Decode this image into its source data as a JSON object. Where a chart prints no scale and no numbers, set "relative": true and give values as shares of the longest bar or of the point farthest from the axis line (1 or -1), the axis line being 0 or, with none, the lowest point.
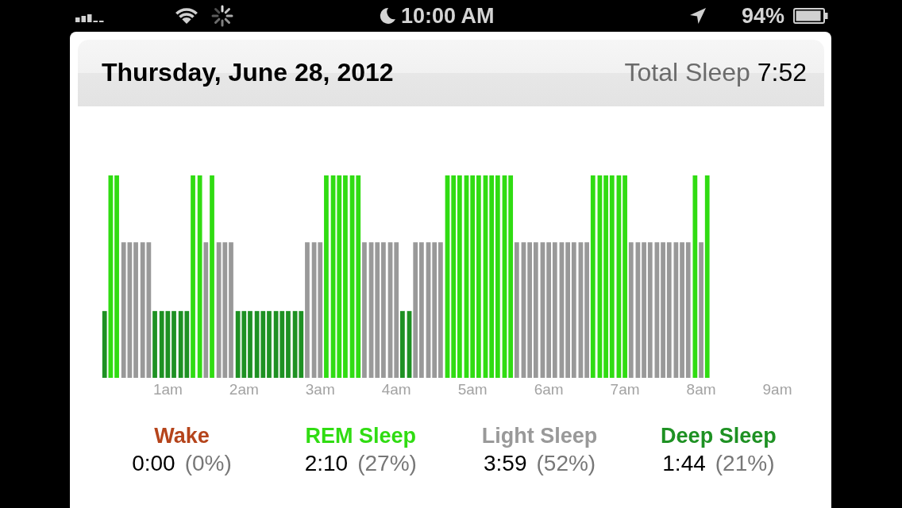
{
  "chart_data": {
    "type": "bar",
    "title": "Thursday, June 28, 2012",
    "relative": true,
    "legend": "bottom",
    "tick_labels": "x",
    "annotations": [
      "Total Sleep",
      "7:52",
      "0:00",
      "(0%)",
      "2:10",
      "(27%)",
      "3:59",
      "(52%)",
      "1:44",
      "(21%)",
      "10:00 AM",
      "94%"
    ],
    "xlim": [
      0.1,
      9
    ],
    "xticks": [
      {
        "value": 1,
        "label": "1am"
      },
      {
        "value": 2,
        "label": "2am"
      },
      {
        "value": 3,
        "label": "3am"
      },
      {
        "value": 4,
        "label": "4am"
      },
      {
        "value": 5,
        "label": "5am"
      },
      {
        "value": 6,
        "label": "6am"
      },
      {
        "value": 7,
        "label": "7am"
      },
      {
        "value": 8,
        "label": "8am"
      },
      {
        "value": 9,
        "label": "9am"
      }
    ],
    "x": [
      0.17,
      0.25,
      0.33,
      0.42,
      0.5,
      0.58,
      0.67,
      0.75,
      0.83,
      0.92,
      1,
      1.08,
      1.17,
      1.25,
      1.33,
      1.42,
      1.5,
      1.58,
      1.67,
      1.75,
      1.83,
      1.92,
      2,
      2.08,
      2.17,
      2.25,
      2.33,
      2.42,
      2.5,
      2.58,
      2.67,
      2.75,
      2.83,
      2.92,
      3,
      3.08,
      3.17,
      3.25,
      3.33,
      3.42,
      3.5,
      3.58,
      3.67,
      3.75,
      3.83,
      3.92,
      4,
      4.08,
      4.17,
      4.25,
      4.33,
      4.42,
      4.5,
      4.58,
      4.67,
      4.75,
      4.83,
      4.92,
      5,
      5.08,
      5.17,
      5.25,
      5.33,
      5.42,
      5.5,
      5.58,
      5.67,
      5.75,
      5.83,
      5.92,
      6,
      6.08,
      6.17,
      6.25,
      6.33,
      6.42,
      6.5,
      6.58,
      6.67,
      6.75,
      6.83,
      6.92,
      7,
      7.08,
      7.17,
      7.25,
      7.33,
      7.42,
      7.5,
      7.58,
      7.67,
      7.75,
      7.83,
      7.92,
      8,
      8.08
    ],
    "series": [
      {
        "name": "Wake",
        "color": "#b5441b",
        "values": [
          null,
          null,
          null,
          null,
          null,
          null,
          null,
          null,
          null,
          null,
          null,
          null,
          null,
          null,
          null,
          null,
          null,
          null,
          null,
          null,
          null,
          null,
          null,
          null,
          null,
          null,
          null,
          null,
          null,
          null,
          null,
          null,
          null,
          null,
          null,
          null,
          null,
          null,
          null,
          null,
          null,
          null,
          null,
          null,
          null,
          null,
          null,
          null,
          null,
          null,
          null,
          null,
          null,
          null,
          null,
          null,
          null,
          null,
          null,
          null,
          null,
          null,
          null,
          null,
          null,
          null,
          null,
          null,
          null,
          null,
          null,
          null,
          null,
          null,
          null,
          null,
          null,
          null,
          null,
          null,
          null,
          null,
          null,
          null,
          null,
          null,
          null,
          null,
          null,
          null,
          null,
          null,
          null,
          null,
          null,
          null
        ]
      },
      {
        "name": "REM Sleep",
        "color": "#30dc12",
        "values": [
          null,
          1,
          1,
          null,
          null,
          null,
          null,
          null,
          null,
          null,
          null,
          null,
          null,
          null,
          1,
          1,
          null,
          1,
          null,
          null,
          null,
          null,
          null,
          null,
          null,
          null,
          null,
          null,
          null,
          null,
          null,
          null,
          null,
          null,
          null,
          1,
          1,
          1,
          1,
          1,
          1,
          null,
          null,
          null,
          null,
          null,
          null,
          null,
          null,
          null,
          null,
          null,
          null,
          null,
          1,
          1,
          1,
          1,
          1,
          1,
          1,
          1,
          1,
          1,
          1,
          null,
          null,
          null,
          null,
          null,
          null,
          null,
          null,
          null,
          null,
          null,
          null,
          1,
          1,
          1,
          1,
          1,
          1,
          null,
          null,
          null,
          null,
          null,
          null,
          null,
          null,
          null,
          null,
          1,
          null,
          1
        ]
      },
      {
        "name": "Light Sleep",
        "color": "#999999",
        "values": [
          null,
          null,
          null,
          0.67,
          0.67,
          0.67,
          0.67,
          0.67,
          null,
          null,
          null,
          null,
          null,
          null,
          null,
          null,
          0.67,
          null,
          0.67,
          0.67,
          0.67,
          null,
          null,
          null,
          null,
          null,
          null,
          null,
          null,
          null,
          null,
          null,
          0.67,
          0.67,
          0.67,
          null,
          null,
          null,
          null,
          null,
          null,
          0.67,
          0.67,
          0.67,
          0.67,
          0.67,
          0.67,
          null,
          null,
          0.67,
          0.67,
          0.67,
          0.67,
          0.67,
          null,
          null,
          null,
          null,
          null,
          null,
          null,
          null,
          null,
          null,
          null,
          0.67,
          0.67,
          0.67,
          0.67,
          0.67,
          0.67,
          0.67,
          0.67,
          0.67,
          0.67,
          0.67,
          0.67,
          null,
          null,
          null,
          null,
          null,
          null,
          0.67,
          0.67,
          0.67,
          0.67,
          0.67,
          0.67,
          0.67,
          0.67,
          0.67,
          0.67,
          null,
          0.67,
          null
        ]
      },
      {
        "name": "Deep Sleep",
        "color": "#1e9123",
        "values": [
          0.33,
          null,
          null,
          null,
          null,
          null,
          null,
          null,
          0.33,
          0.33,
          0.33,
          0.33,
          0.33,
          0.33,
          null,
          null,
          null,
          null,
          null,
          null,
          null,
          0.33,
          0.33,
          0.33,
          0.33,
          0.33,
          0.33,
          0.33,
          0.33,
          0.33,
          0.33,
          0.33,
          null,
          null,
          null,
          null,
          null,
          null,
          null,
          null,
          null,
          null,
          null,
          null,
          null,
          null,
          null,
          0.33,
          0.33,
          null,
          null,
          null,
          null,
          null,
          null,
          null,
          null,
          null,
          null,
          null,
          null,
          null,
          null,
          null,
          null,
          null,
          null,
          null,
          null,
          null,
          null,
          null,
          null,
          null,
          null,
          null,
          null,
          null,
          null,
          null,
          null,
          null,
          null,
          null,
          null,
          null,
          null,
          null,
          null,
          null,
          null,
          null,
          null,
          null,
          null,
          null
        ]
      }
    ]
  }
}
